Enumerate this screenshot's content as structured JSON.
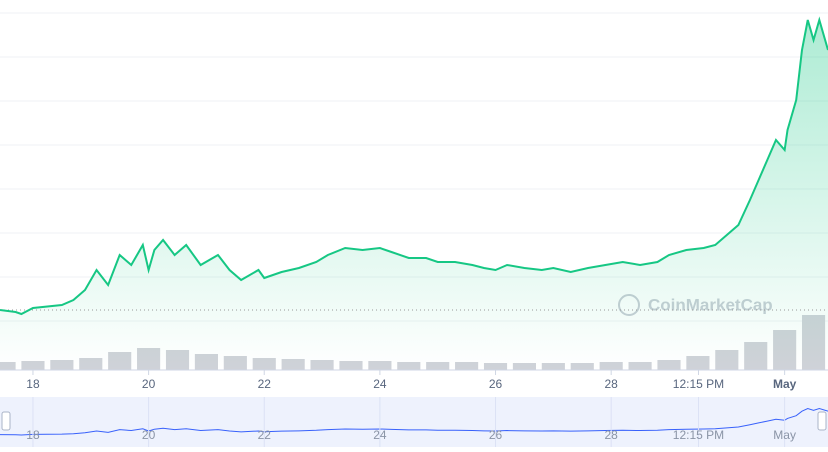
{
  "chart_data": {
    "type": "line",
    "watermark": "CoinMarketCap",
    "x": [
      17.43,
      17.7,
      17.8,
      18.0,
      18.5,
      18.7,
      18.9,
      19.1,
      19.3,
      19.5,
      19.7,
      19.9,
      20.0,
      20.1,
      20.25,
      20.45,
      20.65,
      20.9,
      21.2,
      21.4,
      21.6,
      21.9,
      22.0,
      22.3,
      22.6,
      22.9,
      23.1,
      23.4,
      23.7,
      24.0,
      24.2,
      24.5,
      24.8,
      25.0,
      25.3,
      25.6,
      25.8,
      26.0,
      26.2,
      26.5,
      26.8,
      27.0,
      27.3,
      27.6,
      27.9,
      28.2,
      28.5,
      28.8,
      29.0,
      29.3,
      29.6,
      29.8,
      30.0,
      30.2,
      30.4,
      30.55,
      30.7,
      30.85,
      31.0,
      31.05,
      31.2,
      31.3,
      31.4,
      31.5,
      31.6,
      31.75
    ],
    "series": [
      {
        "color": "#16c784",
        "values": [
          60,
          58,
          56,
          62,
          65,
          70,
          80,
          100,
          85,
          115,
          105,
          125,
          100,
          120,
          130,
          115,
          125,
          105,
          115,
          100,
          90,
          100,
          92,
          98,
          102,
          108,
          115,
          122,
          120,
          122,
          118,
          112,
          112,
          108,
          108,
          105,
          102,
          100,
          105,
          102,
          100,
          102,
          98,
          102,
          105,
          108,
          105,
          108,
          115,
          120,
          122,
          125,
          135,
          145,
          170,
          190,
          210,
          230,
          220,
          240,
          270,
          320,
          350,
          330,
          350,
          320
        ]
      }
    ],
    "volume": {
      "axis": "y2",
      "color": "#cfd2d8",
      "x": [
        17.5,
        18,
        18.5,
        19,
        19.5,
        20,
        20.5,
        21,
        21.5,
        22,
        22.5,
        23,
        23.5,
        24,
        24.5,
        25,
        25.5,
        26,
        26.5,
        27,
        27.5,
        28,
        28.5,
        29,
        29.5,
        30,
        30.5,
        31,
        31.5
      ],
      "values": [
        8,
        9,
        10,
        12,
        18,
        22,
        20,
        16,
        14,
        12,
        11,
        10,
        9,
        9,
        8,
        8,
        8,
        7,
        7,
        7,
        7,
        8,
        8,
        10,
        14,
        20,
        28,
        40,
        55
      ]
    },
    "xlim": [
      17.43,
      31.75
    ],
    "ylim": [
      0,
      360
    ],
    "y2lim": [
      0,
      360
    ],
    "xticks": [
      18,
      20,
      22,
      24,
      26,
      28,
      {
        "value": 29.51,
        "label": "12:15 PM"
      },
      {
        "value": 31,
        "label": "May"
      }
    ],
    "ygrid": [
      357,
      313,
      269,
      225,
      181,
      137,
      93,
      49
    ],
    "navigator_color": "#3861fb"
  }
}
